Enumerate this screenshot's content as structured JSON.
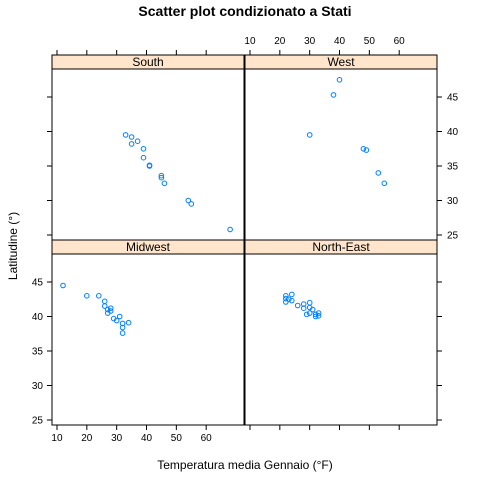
{
  "chart_data": {
    "type": "scatter",
    "title": "Scatter plot condizionato a Stati",
    "xlabel": "Temperatura media Gennaio (°F)",
    "ylabel": "Latitudine (°)",
    "xlim": [
      9,
      72
    ],
    "ylim": [
      24,
      49
    ],
    "xticks": [
      10,
      20,
      30,
      40,
      50,
      60
    ],
    "yticks": [
      25,
      30,
      35,
      40,
      45
    ],
    "point_color": "#0080ff",
    "strip_color": "#ffe5cc",
    "panels": [
      {
        "name": "South",
        "points": [
          {
            "x": 33,
            "y": 39.5
          },
          {
            "x": 35,
            "y": 39.2
          },
          {
            "x": 37,
            "y": 38.6
          },
          {
            "x": 35,
            "y": 38.2
          },
          {
            "x": 39,
            "y": 37.5
          },
          {
            "x": 39,
            "y": 36.2
          },
          {
            "x": 41,
            "y": 35.1
          },
          {
            "x": 41,
            "y": 35.0
          },
          {
            "x": 45,
            "y": 33.6
          },
          {
            "x": 45,
            "y": 33.3
          },
          {
            "x": 46,
            "y": 32.5
          },
          {
            "x": 54,
            "y": 30.0
          },
          {
            "x": 55,
            "y": 29.5
          },
          {
            "x": 68,
            "y": 25.8
          }
        ]
      },
      {
        "name": "West",
        "points": [
          {
            "x": 40,
            "y": 47.5
          },
          {
            "x": 38,
            "y": 45.3
          },
          {
            "x": 30,
            "y": 39.5
          },
          {
            "x": 48,
            "y": 37.5
          },
          {
            "x": 49,
            "y": 37.3
          },
          {
            "x": 53,
            "y": 34.0
          },
          {
            "x": 55,
            "y": 32.5
          }
        ]
      },
      {
        "name": "Midwest",
        "points": [
          {
            "x": 12,
            "y": 44.5
          },
          {
            "x": 20,
            "y": 43.0
          },
          {
            "x": 24,
            "y": 43.0
          },
          {
            "x": 26,
            "y": 42.2
          },
          {
            "x": 26,
            "y": 41.5
          },
          {
            "x": 27,
            "y": 41.0
          },
          {
            "x": 28,
            "y": 41.2
          },
          {
            "x": 28,
            "y": 40.8
          },
          {
            "x": 27,
            "y": 40.5
          },
          {
            "x": 29,
            "y": 39.7
          },
          {
            "x": 30,
            "y": 39.4
          },
          {
            "x": 31,
            "y": 40.0
          },
          {
            "x": 32,
            "y": 39.0
          },
          {
            "x": 34,
            "y": 39.1
          },
          {
            "x": 32,
            "y": 38.4
          },
          {
            "x": 32,
            "y": 37.6
          }
        ]
      },
      {
        "name": "North-East",
        "points": [
          {
            "x": 22,
            "y": 43.0
          },
          {
            "x": 24,
            "y": 43.2
          },
          {
            "x": 22,
            "y": 42.6
          },
          {
            "x": 23,
            "y": 42.5
          },
          {
            "x": 24,
            "y": 42.3
          },
          {
            "x": 22,
            "y": 42.1
          },
          {
            "x": 26,
            "y": 41.6
          },
          {
            "x": 28,
            "y": 41.8
          },
          {
            "x": 30,
            "y": 42.0
          },
          {
            "x": 28,
            "y": 41.2
          },
          {
            "x": 30,
            "y": 41.3
          },
          {
            "x": 31,
            "y": 41.0
          },
          {
            "x": 29,
            "y": 40.3
          },
          {
            "x": 30,
            "y": 40.5
          },
          {
            "x": 32,
            "y": 40.3
          },
          {
            "x": 33,
            "y": 40.5
          },
          {
            "x": 33,
            "y": 40.1
          },
          {
            "x": 32,
            "y": 40.0
          }
        ]
      }
    ]
  }
}
